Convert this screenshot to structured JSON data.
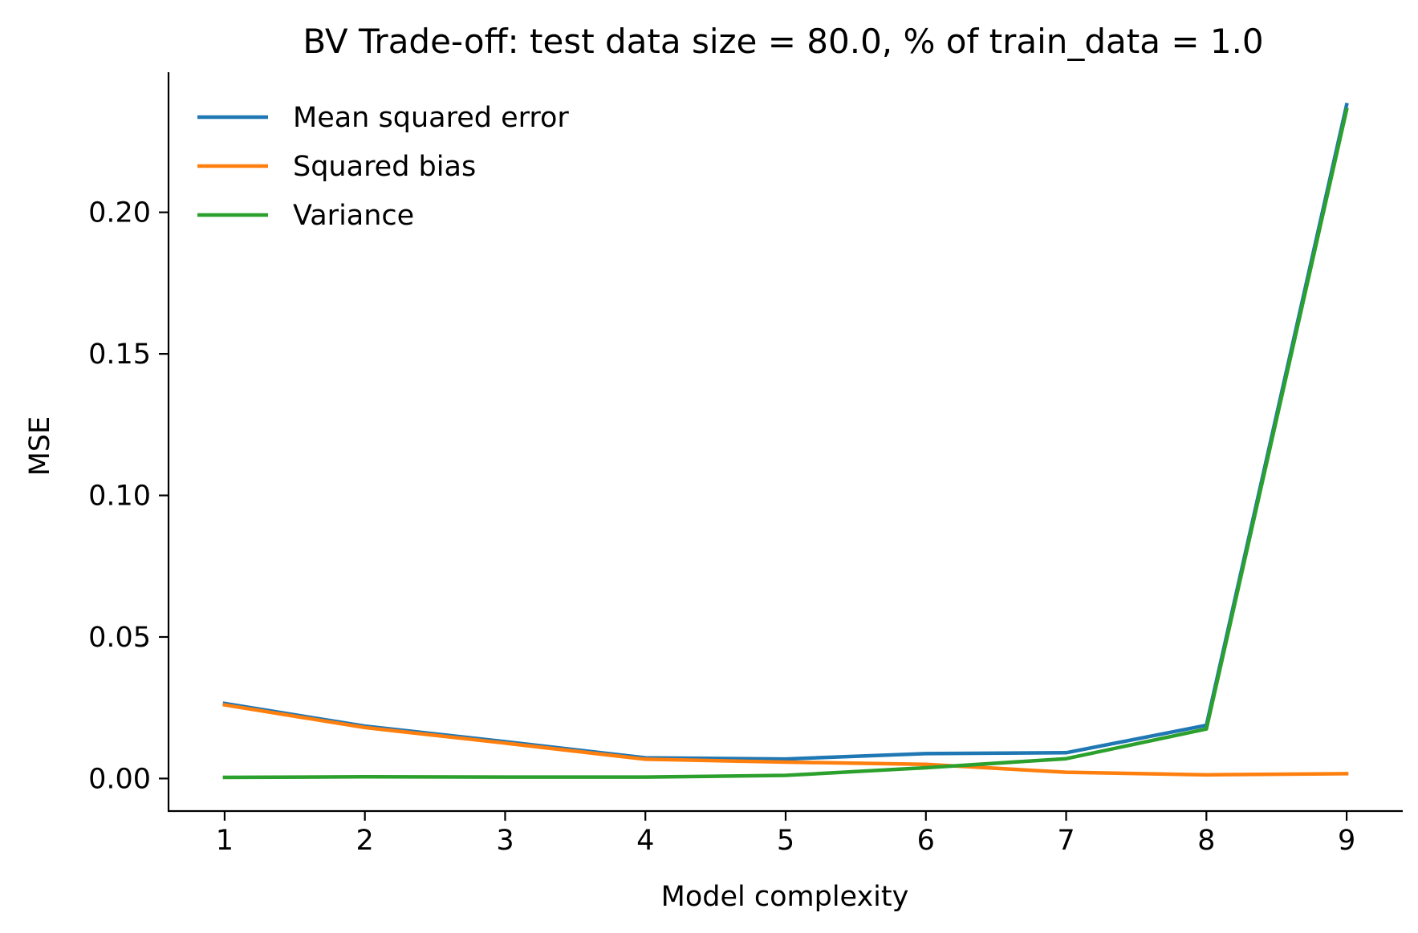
{
  "chart_data": {
    "type": "line",
    "title": "BV Trade-off: test data size = 80.0, % of train_data = 1.0",
    "xlabel": "Model complexity",
    "ylabel": "MSE",
    "x": [
      1,
      2,
      3,
      4,
      5,
      6,
      7,
      8,
      9
    ],
    "xlim": [
      0.6,
      9.4
    ],
    "ylim": [
      -0.0115,
      0.2495
    ],
    "xticks": [
      1,
      2,
      3,
      4,
      5,
      6,
      7,
      8,
      9
    ],
    "xtick_labels": [
      "1",
      "2",
      "3",
      "4",
      "5",
      "6",
      "7",
      "8",
      "9"
    ],
    "yticks": [
      0.0,
      0.05,
      0.1,
      0.15,
      0.2
    ],
    "ytick_labels": [
      "0.00",
      "0.05",
      "0.10",
      "0.15",
      "0.20"
    ],
    "grid": false,
    "legend_position": "top-left",
    "series": [
      {
        "name": "Mean squared error",
        "color": "#1f77b4",
        "values": [
          0.0265,
          0.0185,
          0.013,
          0.0073,
          0.0069,
          0.0088,
          0.0091,
          0.0188,
          0.238
        ]
      },
      {
        "name": "Squared bias",
        "color": "#ff7f0e",
        "values": [
          0.026,
          0.018,
          0.0125,
          0.0068,
          0.0058,
          0.005,
          0.0022,
          0.0013,
          0.0017
        ]
      },
      {
        "name": "Variance",
        "color": "#2ca02c",
        "values": [
          0.0004,
          0.0006,
          0.0005,
          0.0005,
          0.0011,
          0.0038,
          0.007,
          0.0175,
          0.2363
        ]
      }
    ]
  }
}
